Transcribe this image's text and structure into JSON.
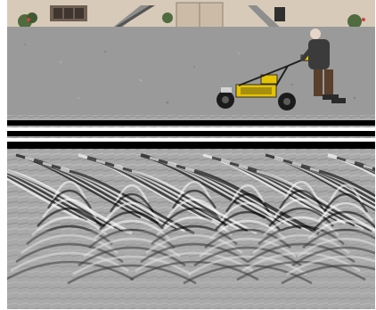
{
  "figure": {
    "panels": [
      {
        "id": "photo",
        "content": "photograph"
      },
      {
        "id": "radargram",
        "content": "radargram"
      }
    ]
  },
  "photo": {
    "scene": [
      "building-facade",
      "gravel-courtyard",
      "operator",
      "gpr-cart"
    ],
    "colors": {
      "sky_wall": "#d9cdbf",
      "gravel": "#9a9a9a",
      "door": "#cbbba7",
      "shirt": "#3b3b3b",
      "cart_yellow": "#e6c300"
    }
  },
  "radargram": {
    "colors": {
      "dark": "#000000",
      "light": "#ffffff",
      "mid": "#a9a9a9"
    }
  }
}
